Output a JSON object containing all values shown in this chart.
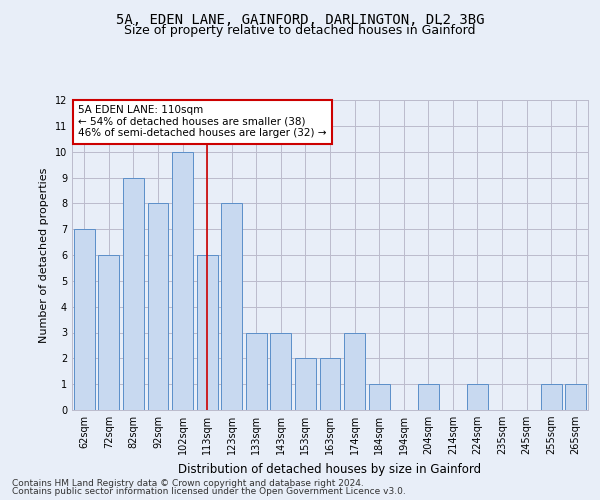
{
  "title_line1": "5A, EDEN LANE, GAINFORD, DARLINGTON, DL2 3BG",
  "title_line2": "Size of property relative to detached houses in Gainford",
  "xlabel": "Distribution of detached houses by size in Gainford",
  "ylabel": "Number of detached properties",
  "categories": [
    "62sqm",
    "72sqm",
    "82sqm",
    "92sqm",
    "102sqm",
    "113sqm",
    "123sqm",
    "133sqm",
    "143sqm",
    "153sqm",
    "163sqm",
    "174sqm",
    "184sqm",
    "194sqm",
    "204sqm",
    "214sqm",
    "224sqm",
    "235sqm",
    "245sqm",
    "255sqm",
    "265sqm"
  ],
  "values": [
    7,
    6,
    9,
    8,
    10,
    6,
    8,
    3,
    3,
    2,
    2,
    3,
    1,
    0,
    1,
    0,
    1,
    0,
    0,
    1,
    1
  ],
  "bar_color": "#c8d9f0",
  "bar_edge_color": "#5b8fc9",
  "red_line_index": 5,
  "ylim": [
    0,
    12
  ],
  "yticks": [
    0,
    1,
    2,
    3,
    4,
    5,
    6,
    7,
    8,
    9,
    10,
    11,
    12
  ],
  "annotation_text": "5A EDEN LANE: 110sqm\n← 54% of detached houses are smaller (38)\n46% of semi-detached houses are larger (32) →",
  "annotation_box_color": "#ffffff",
  "annotation_box_edge": "#cc0000",
  "footer_line1": "Contains HM Land Registry data © Crown copyright and database right 2024.",
  "footer_line2": "Contains public sector information licensed under the Open Government Licence v3.0.",
  "background_color": "#e8eef8",
  "grid_color": "#bbbbcc",
  "title1_fontsize": 10,
  "title2_fontsize": 9,
  "xlabel_fontsize": 8.5,
  "ylabel_fontsize": 8,
  "tick_fontsize": 7,
  "annotation_fontsize": 7.5,
  "footer_fontsize": 6.5
}
